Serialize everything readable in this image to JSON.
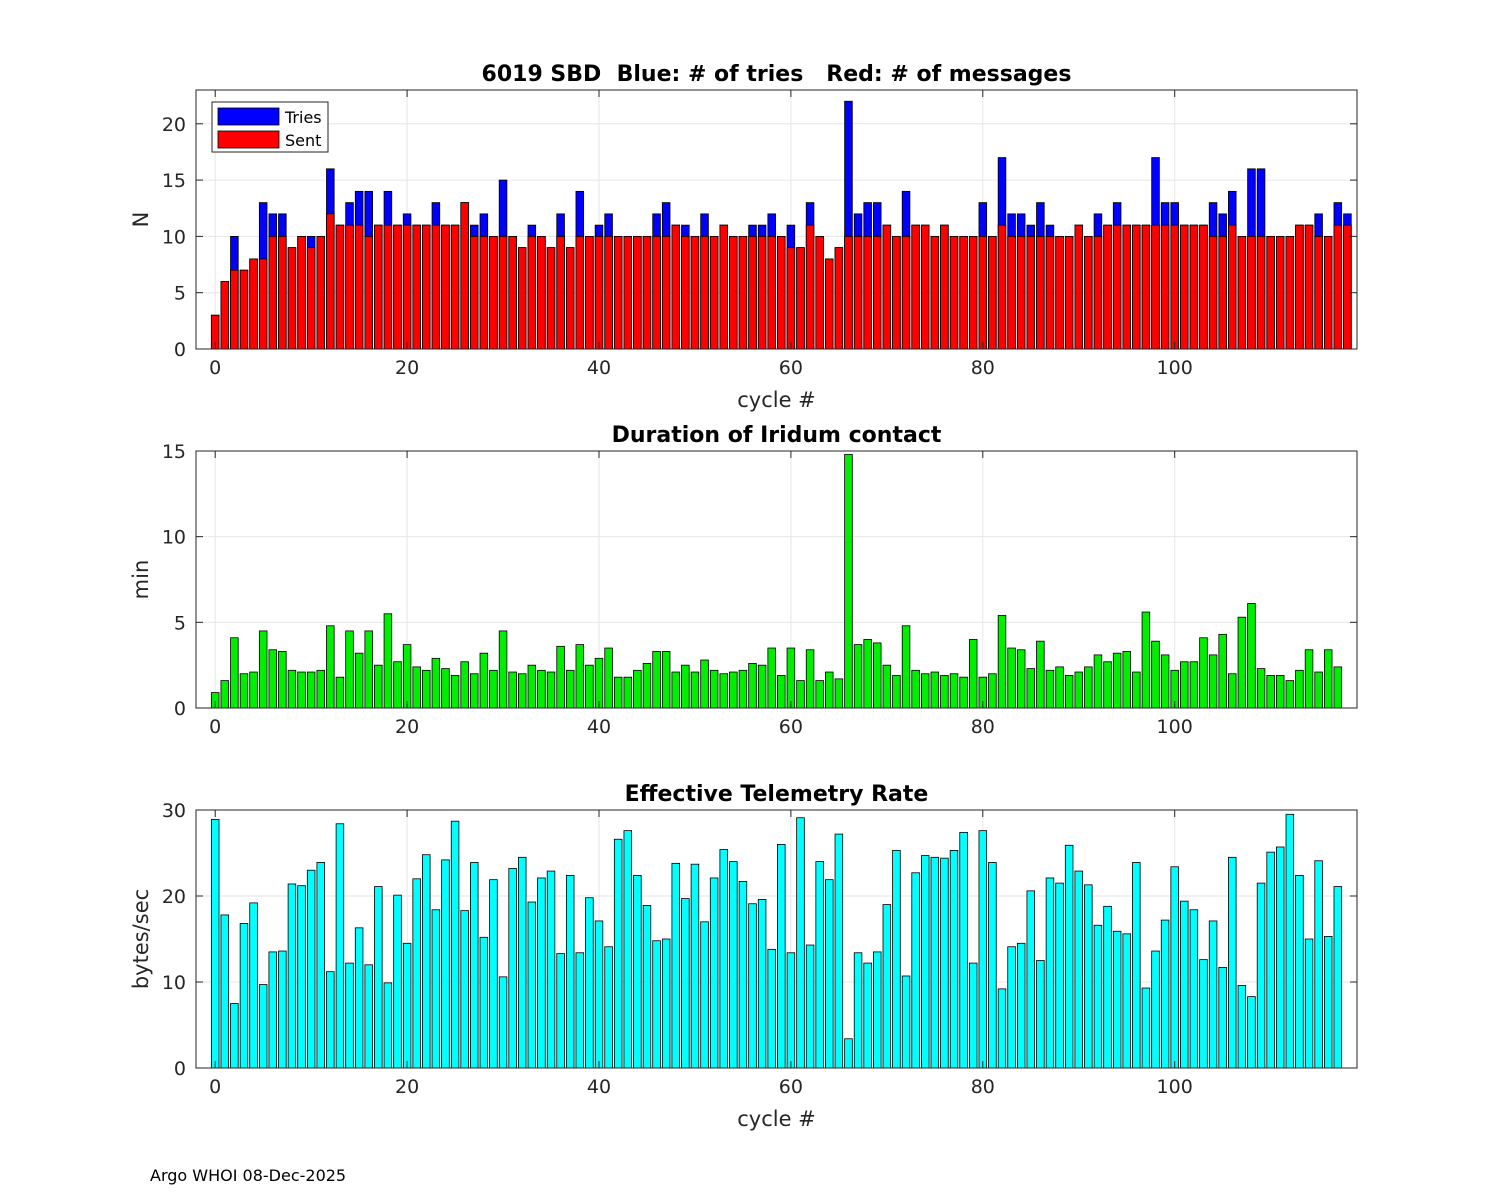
{
  "footer": "Argo WHOI 08-Dec-2025",
  "colors": {
    "tries": "#0000ff",
    "sent": "#ff0000",
    "duration": "#00ee00",
    "rate": "#00ffff",
    "axis": "#262626",
    "grid": "#e6e6e6"
  },
  "chart_data": [
    {
      "type": "bar",
      "title": "6019 SBD  Blue: # of tries   Red: # of messages",
      "xlabel": "cycle #",
      "ylabel": "N",
      "xlim": [
        -2,
        119
      ],
      "ylim": [
        0,
        23
      ],
      "xticks": [
        0,
        20,
        40,
        60,
        80,
        100
      ],
      "yticks": [
        0,
        5,
        10,
        15,
        20
      ],
      "grid": true,
      "legend": {
        "position": "top-left",
        "entries": [
          "Tries",
          "Sent"
        ]
      },
      "x_start": 0,
      "series": [
        {
          "name": "Tries",
          "color": "#0000ff",
          "values": [
            3,
            6,
            10,
            7,
            8,
            13,
            12,
            12,
            9,
            10,
            10,
            10,
            16,
            11,
            13,
            14,
            14,
            11,
            14,
            11,
            12,
            11,
            11,
            13,
            11,
            11,
            13,
            11,
            12,
            10,
            15,
            10,
            9,
            11,
            10,
            9,
            12,
            9,
            14,
            10,
            11,
            12,
            10,
            10,
            10,
            10,
            12,
            13,
            11,
            11,
            10,
            12,
            10,
            11,
            10,
            10,
            11,
            11,
            12,
            10,
            11,
            9,
            13,
            10,
            8,
            9,
            22,
            12,
            13,
            13,
            11,
            10,
            14,
            11,
            11,
            10,
            11,
            10,
            10,
            10,
            13,
            10,
            17,
            12,
            12,
            11,
            13,
            11,
            10,
            10,
            11,
            10,
            12,
            11,
            13,
            11,
            11,
            11,
            17,
            13,
            13,
            11,
            11,
            11,
            13,
            12,
            14,
            10,
            16,
            16,
            10,
            10,
            10,
            11,
            11,
            12,
            10,
            13,
            12
          ]
        },
        {
          "name": "Sent",
          "color": "#ff0000",
          "values": [
            3,
            6,
            7,
            7,
            8,
            8,
            10,
            10,
            9,
            10,
            9,
            10,
            12,
            11,
            11,
            11,
            10,
            11,
            11,
            11,
            11,
            11,
            11,
            11,
            11,
            11,
            13,
            10,
            10,
            10,
            10,
            10,
            9,
            10,
            10,
            9,
            10,
            9,
            10,
            10,
            10,
            10,
            10,
            10,
            10,
            10,
            10,
            10,
            11,
            10,
            10,
            10,
            10,
            11,
            10,
            10,
            10,
            10,
            10,
            10,
            9,
            9,
            11,
            10,
            8,
            9,
            10,
            10,
            10,
            10,
            11,
            10,
            10,
            11,
            11,
            10,
            11,
            10,
            10,
            10,
            10,
            10,
            11,
            10,
            10,
            10,
            10,
            10,
            10,
            10,
            11,
            10,
            10,
            11,
            11,
            11,
            11,
            11,
            11,
            11,
            11,
            11,
            11,
            11,
            10,
            10,
            11,
            10,
            10,
            10,
            10,
            10,
            10,
            11,
            11,
            10,
            10,
            11,
            11
          ]
        }
      ]
    },
    {
      "type": "bar",
      "title": "Duration of Iridum contact",
      "xlabel": "",
      "ylabel": "min",
      "xlim": [
        -2,
        119
      ],
      "ylim": [
        0,
        15
      ],
      "xticks": [
        0,
        20,
        40,
        60,
        80,
        100
      ],
      "yticks": [
        0,
        5,
        10,
        15
      ],
      "grid": true,
      "x_start": 0,
      "series": [
        {
          "name": "Duration",
          "color": "#00ee00",
          "values": [
            0.9,
            1.6,
            4.1,
            2.0,
            2.1,
            4.5,
            3.4,
            3.3,
            2.2,
            2.1,
            2.1,
            2.2,
            4.8,
            1.8,
            4.5,
            3.2,
            4.5,
            2.5,
            5.5,
            2.7,
            3.7,
            2.4,
            2.2,
            2.9,
            2.3,
            1.9,
            2.7,
            2.0,
            3.2,
            2.2,
            4.5,
            2.1,
            2.0,
            2.5,
            2.2,
            2.1,
            3.6,
            2.2,
            3.7,
            2.5,
            2.9,
            3.5,
            1.8,
            1.8,
            2.2,
            2.6,
            3.3,
            3.3,
            2.1,
            2.5,
            2.1,
            2.8,
            2.2,
            2.0,
            2.1,
            2.2,
            2.6,
            2.5,
            3.5,
            1.9,
            3.5,
            1.6,
            3.4,
            1.6,
            2.1,
            1.7,
            14.8,
            3.7,
            4.0,
            3.8,
            2.5,
            1.9,
            4.8,
            2.2,
            2.0,
            2.1,
            1.9,
            2.0,
            1.8,
            4.0,
            1.8,
            2.0,
            5.4,
            3.5,
            3.4,
            2.3,
            3.9,
            2.2,
            2.4,
            1.9,
            2.1,
            2.4,
            3.1,
            2.7,
            3.2,
            3.3,
            2.1,
            5.6,
            3.9,
            3.1,
            2.2,
            2.7,
            2.7,
            4.1,
            3.1,
            4.3,
            2.0,
            5.3,
            6.1,
            2.3,
            1.9,
            1.9,
            1.6,
            2.2,
            3.4,
            2.1,
            3.4,
            2.4
          ]
        }
      ]
    },
    {
      "type": "bar",
      "title": "Effective Telemetry Rate",
      "xlabel": "cycle #",
      "ylabel": "bytes/sec",
      "xlim": [
        -2,
        119
      ],
      "ylim": [
        0,
        30
      ],
      "xticks": [
        0,
        20,
        40,
        60,
        80,
        100
      ],
      "yticks": [
        0,
        10,
        20,
        30
      ],
      "grid": true,
      "x_start": 0,
      "series": [
        {
          "name": "Rate",
          "color": "#00ffff",
          "values": [
            28.9,
            17.8,
            7.5,
            16.8,
            19.2,
            9.7,
            13.5,
            13.6,
            21.4,
            21.2,
            23.0,
            23.9,
            11.2,
            28.4,
            12.2,
            16.3,
            12.0,
            21.1,
            9.9,
            20.1,
            14.5,
            22.0,
            24.8,
            18.4,
            24.2,
            28.7,
            18.3,
            23.9,
            15.2,
            21.9,
            10.6,
            23.2,
            24.5,
            19.3,
            22.1,
            22.9,
            13.3,
            22.4,
            13.4,
            19.8,
            17.1,
            14.1,
            26.6,
            27.6,
            22.4,
            18.9,
            14.8,
            15.0,
            23.8,
            19.7,
            23.7,
            17.0,
            22.1,
            25.4,
            24.0,
            21.7,
            19.1,
            19.6,
            13.8,
            26.0,
            13.4,
            29.1,
            14.3,
            24.0,
            21.9,
            27.2,
            3.4,
            13.4,
            12.2,
            13.5,
            19.0,
            25.3,
            10.7,
            22.7,
            24.7,
            24.5,
            24.4,
            25.3,
            27.4,
            12.2,
            27.6,
            23.9,
            9.2,
            14.1,
            14.5,
            20.6,
            12.5,
            22.1,
            21.5,
            25.9,
            22.9,
            21.3,
            16.6,
            18.8,
            15.9,
            15.6,
            23.9,
            9.3,
            13.6,
            17.2,
            23.4,
            19.4,
            18.4,
            12.6,
            17.1,
            11.7,
            24.5,
            9.6,
            8.3,
            21.5,
            25.1,
            25.7,
            29.5,
            22.4,
            15.0,
            24.1,
            15.3,
            21.1
          ]
        }
      ]
    }
  ]
}
